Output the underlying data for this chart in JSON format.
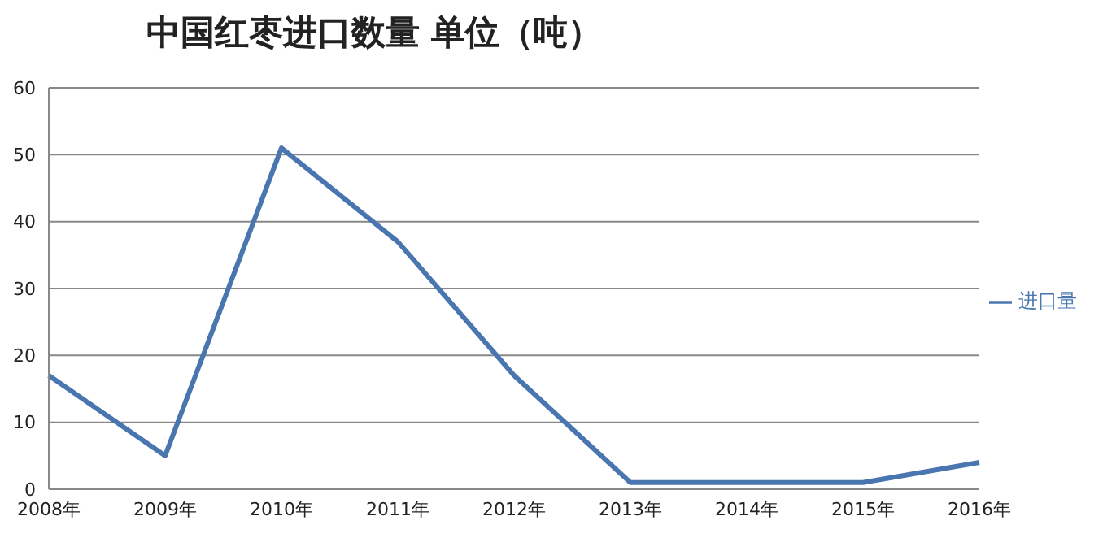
{
  "chart_data": {
    "type": "line",
    "title": "中国红枣进口数量  单位（吨）",
    "categories": [
      "2008年",
      "2009年",
      "2010年",
      "2011年",
      "2012年",
      "2013年",
      "2014年",
      "2015年",
      "2016年"
    ],
    "series": [
      {
        "name": "进口量",
        "color": "#4a76b0",
        "values": [
          17,
          5,
          51,
          37,
          17,
          1,
          1,
          1,
          4
        ]
      }
    ],
    "ylim": [
      0,
      60
    ],
    "yticks": [
      0,
      10,
      20,
      30,
      40,
      50,
      60
    ],
    "grid": "y",
    "legend": "right",
    "marker": "none",
    "line_style": "solid"
  }
}
